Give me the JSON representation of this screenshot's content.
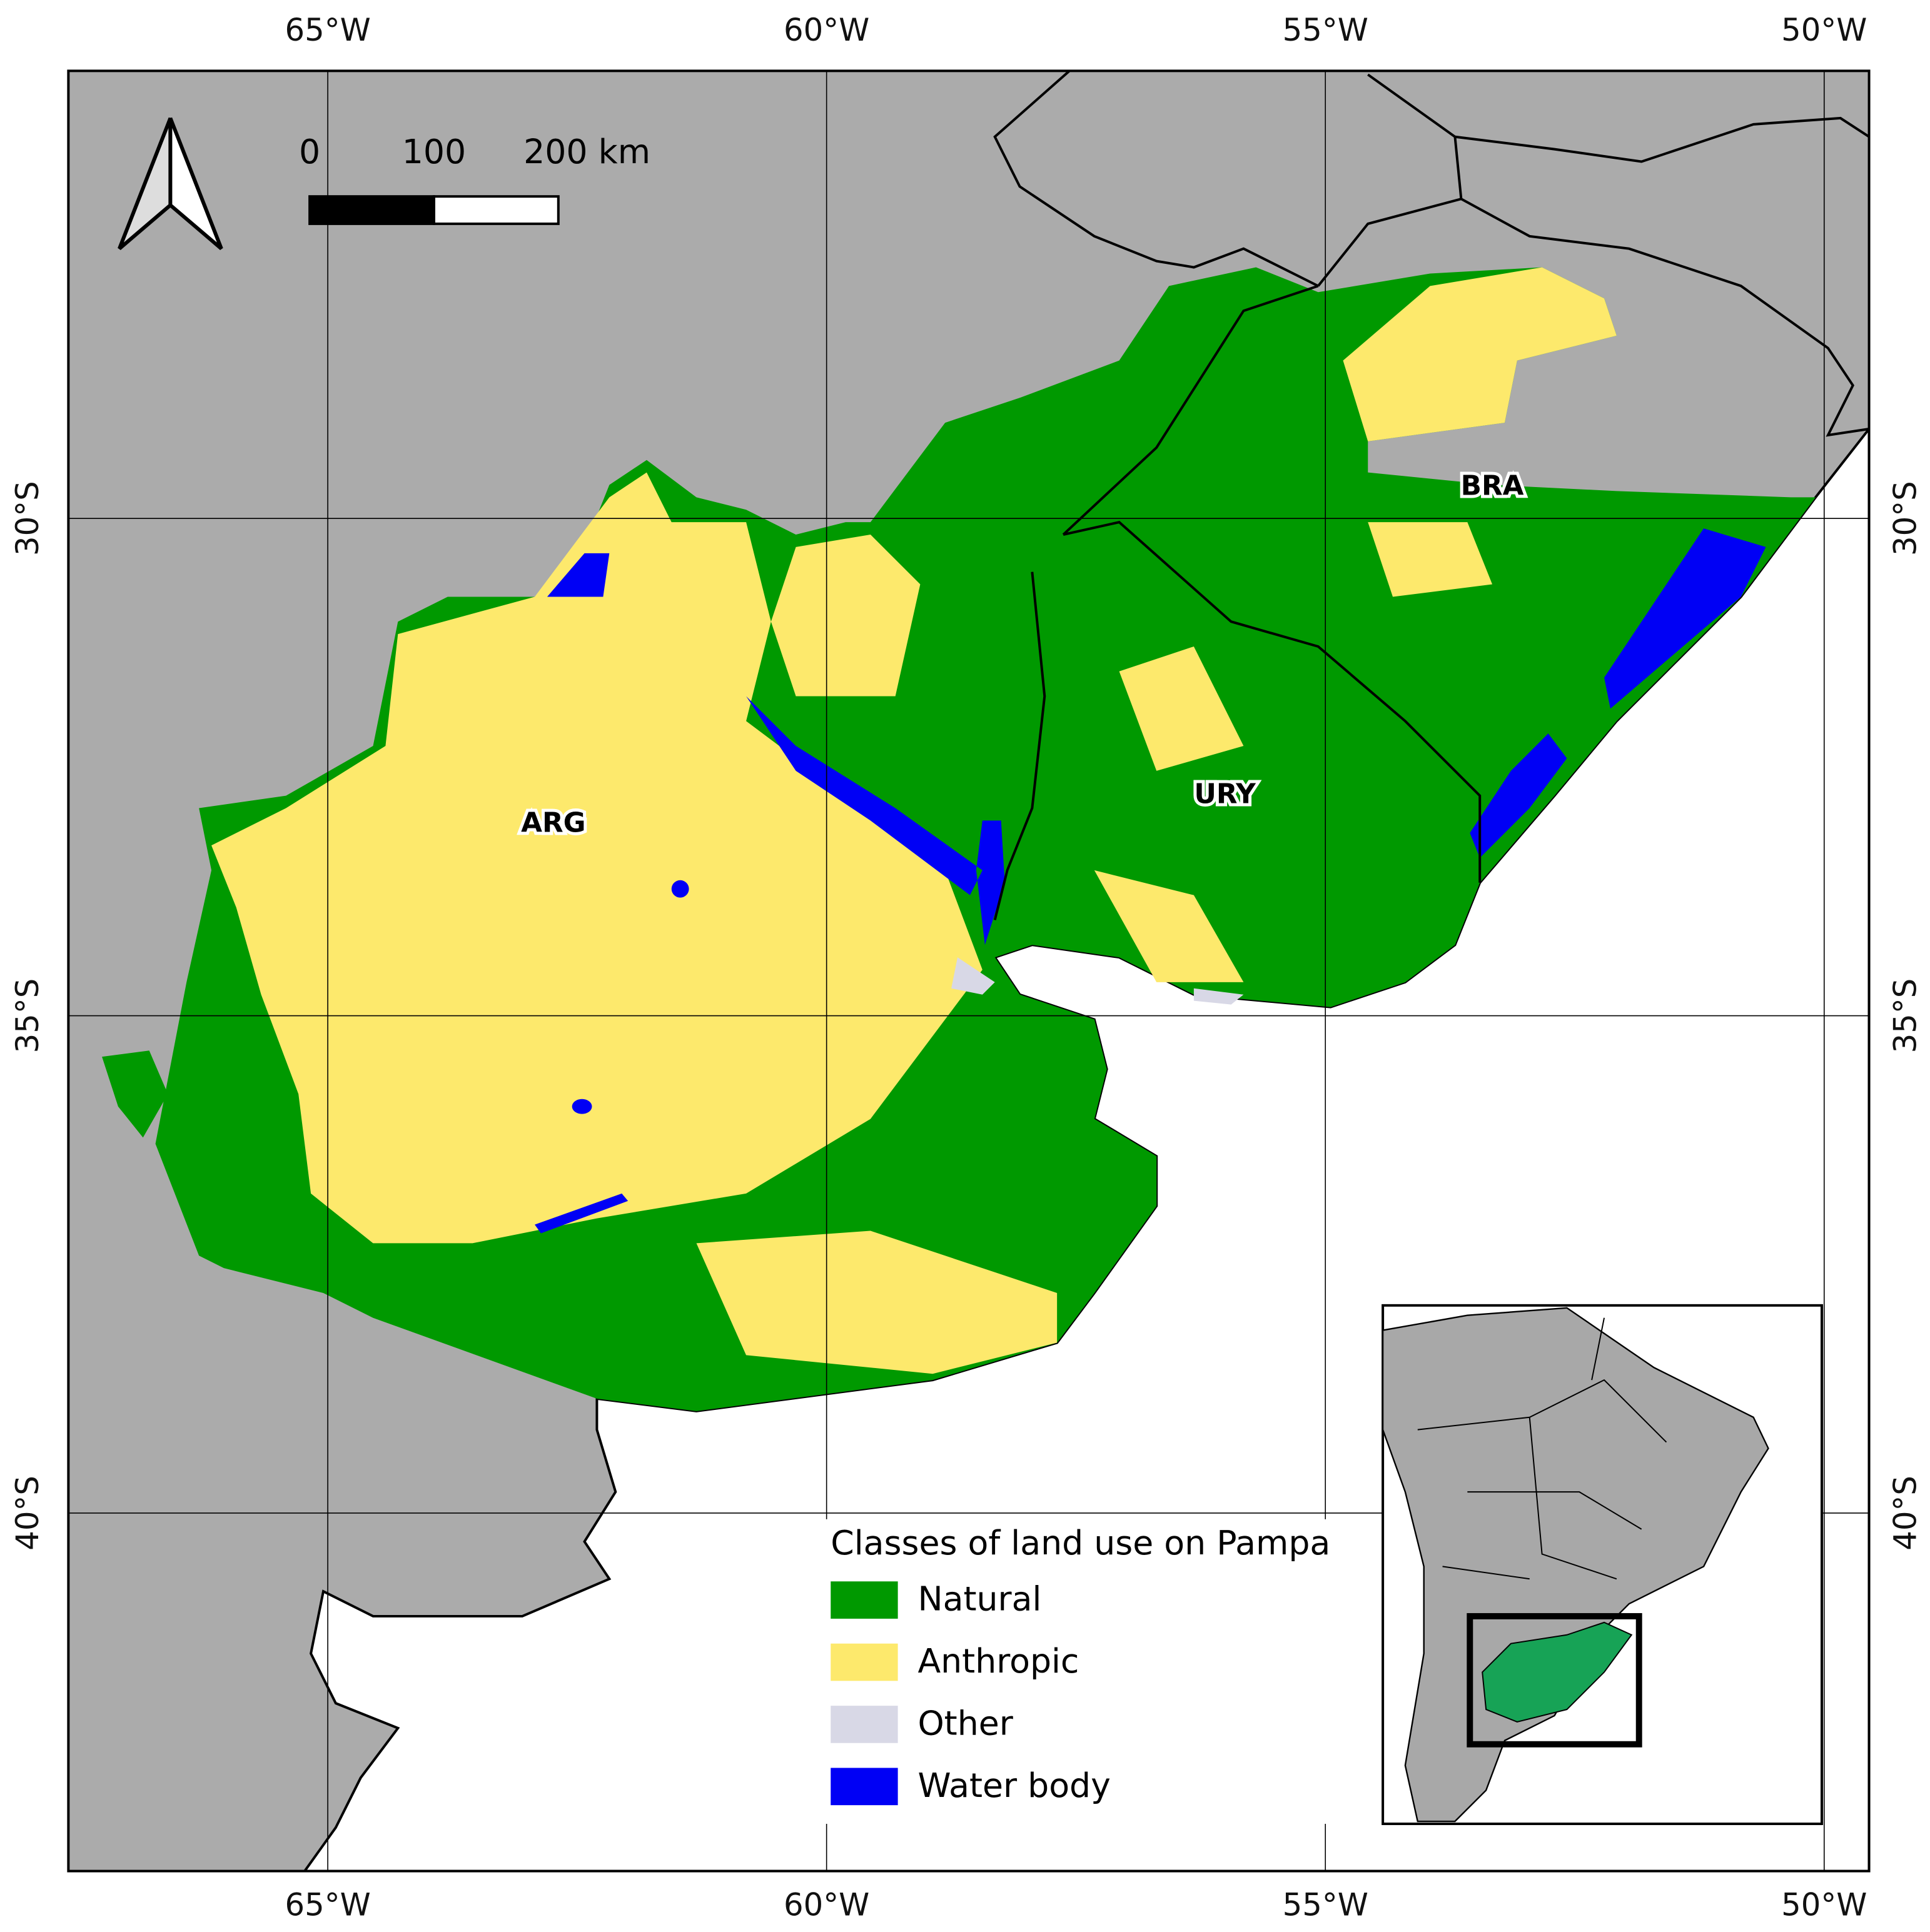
{
  "map": {
    "xlim": [
      -67.6,
      -49.55
    ],
    "ylim": [
      -43.6,
      -25.5
    ],
    "xticks": [
      {
        "value": -65,
        "label": "65°W"
      },
      {
        "value": -60,
        "label": "60°W"
      },
      {
        "value": -55,
        "label": "55°W"
      },
      {
        "value": -50,
        "label": "50°W"
      }
    ],
    "yticks": [
      {
        "value": -30,
        "label": "30°S"
      },
      {
        "value": -35,
        "label": "35°S"
      },
      {
        "value": -40,
        "label": "40°S"
      }
    ],
    "scale_bar": {
      "ticks": [
        0,
        100,
        {
          "value": 200,
          "label": "200 km"
        }
      ]
    },
    "country_labels": [
      "ARG",
      "URY",
      "BRA"
    ],
    "legend": {
      "title": "Classes of land use on Pampa",
      "items": [
        {
          "name": "Natural",
          "color": "#009900"
        },
        {
          "name": "Anthropic",
          "color": "#fde96c"
        },
        {
          "name": "Other",
          "color": "#d8d8e6"
        },
        {
          "name": "Water body",
          "color": "#0000f5"
        }
      ]
    }
  }
}
